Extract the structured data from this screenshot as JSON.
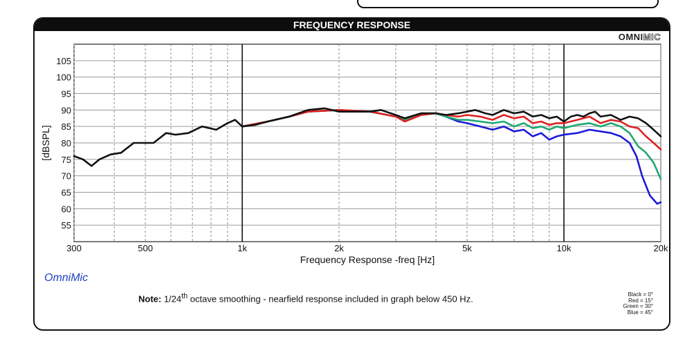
{
  "header": {
    "title": "FREQUENCY RESPONSE",
    "brand_a": "OMNI",
    "brand_b": "MIC"
  },
  "footer": {
    "omnimic": "OmniMic",
    "note_label": "Note:",
    "note_pre": " 1/24",
    "note_sup": "th",
    "note_post": " octave smoothing - nearfield response included in graph below 450 Hz.",
    "legend_lines": [
      "Black = 0°",
      "Red = 15°",
      "Green = 30°",
      "Blue = 45°"
    ]
  },
  "chart_data": {
    "type": "line",
    "title": "FREQUENCY RESPONSE",
    "xlabel": "Frequency Response -freq [Hz]",
    "ylabel": "[dBSPL]",
    "xscale": "log",
    "xlim": [
      300,
      20000
    ],
    "ylim": [
      50,
      110
    ],
    "grid": true,
    "yticks": [
      55,
      60,
      65,
      70,
      75,
      80,
      85,
      90,
      95,
      100,
      105
    ],
    "xtick_labels": [
      {
        "value": 300,
        "label": "300"
      },
      {
        "value": 500,
        "label": "500"
      },
      {
        "value": 1000,
        "label": "1k"
      },
      {
        "value": 2000,
        "label": "2k"
      },
      {
        "value": 5000,
        "label": "5k"
      },
      {
        "value": 10000,
        "label": "10k"
      },
      {
        "value": 20000,
        "label": "20k"
      }
    ],
    "series": [
      {
        "color": "#1a1ad8",
        "points": [
          [
            1000,
            85
          ],
          [
            1200,
            86.5
          ],
          [
            1400,
            88
          ],
          [
            1600,
            89.5
          ],
          [
            2000,
            90
          ],
          [
            2500,
            89.5
          ],
          [
            3000,
            88
          ],
          [
            3200,
            87
          ],
          [
            3600,
            88.5
          ],
          [
            4000,
            89
          ],
          [
            4300,
            88
          ],
          [
            4700,
            86.5
          ],
          [
            5000,
            86
          ],
          [
            5500,
            85
          ],
          [
            6000,
            84
          ],
          [
            6500,
            85
          ],
          [
            7000,
            83.5
          ],
          [
            7500,
            84
          ],
          [
            8000,
            82
          ],
          [
            8500,
            83
          ],
          [
            9000,
            81
          ],
          [
            9500,
            82
          ],
          [
            10000,
            82.5
          ],
          [
            11000,
            83
          ],
          [
            12000,
            84
          ],
          [
            13000,
            83.5
          ],
          [
            14000,
            83
          ],
          [
            15000,
            82
          ],
          [
            16000,
            80
          ],
          [
            16800,
            76
          ],
          [
            17500,
            70
          ],
          [
            18500,
            64
          ],
          [
            19500,
            61.5
          ],
          [
            20000,
            62
          ]
        ]
      },
      {
        "color": "#1fa872",
        "points": [
          [
            1000,
            85
          ],
          [
            1200,
            86.5
          ],
          [
            1400,
            88
          ],
          [
            1600,
            89.5
          ],
          [
            2000,
            90
          ],
          [
            2500,
            89.5
          ],
          [
            3000,
            88
          ],
          [
            3200,
            87
          ],
          [
            3600,
            88.5
          ],
          [
            4000,
            89
          ],
          [
            4300,
            88
          ],
          [
            4700,
            87
          ],
          [
            5000,
            87
          ],
          [
            5500,
            86.5
          ],
          [
            6000,
            86
          ],
          [
            6500,
            86.5
          ],
          [
            7000,
            85
          ],
          [
            7500,
            86
          ],
          [
            8000,
            84.5
          ],
          [
            8500,
            85
          ],
          [
            9000,
            84
          ],
          [
            9500,
            85
          ],
          [
            10000,
            84.5
          ],
          [
            11000,
            85.5
          ],
          [
            12000,
            86
          ],
          [
            13000,
            85
          ],
          [
            14000,
            86
          ],
          [
            15000,
            85
          ],
          [
            16000,
            83
          ],
          [
            17000,
            79
          ],
          [
            18000,
            77
          ],
          [
            19000,
            74
          ],
          [
            20000,
            69
          ]
        ]
      },
      {
        "color": "#e02020",
        "points": [
          [
            1000,
            85
          ],
          [
            1200,
            86.5
          ],
          [
            1400,
            88
          ],
          [
            1600,
            89.5
          ],
          [
            2000,
            90
          ],
          [
            2500,
            89.5
          ],
          [
            3000,
            88
          ],
          [
            3200,
            86.5
          ],
          [
            3600,
            88.5
          ],
          [
            4000,
            89
          ],
          [
            4300,
            88.5
          ],
          [
            4700,
            88
          ],
          [
            5000,
            88.5
          ],
          [
            5500,
            88
          ],
          [
            6000,
            87
          ],
          [
            6500,
            88.5
          ],
          [
            7000,
            87.5
          ],
          [
            7500,
            88
          ],
          [
            8000,
            86
          ],
          [
            8500,
            86.5
          ],
          [
            9000,
            85.5
          ],
          [
            9500,
            86
          ],
          [
            10000,
            86
          ],
          [
            11000,
            87
          ],
          [
            12000,
            88
          ],
          [
            13000,
            86
          ],
          [
            14000,
            87
          ],
          [
            15000,
            86.5
          ],
          [
            16000,
            85
          ],
          [
            17000,
            84.5
          ],
          [
            18000,
            82
          ],
          [
            19000,
            80
          ],
          [
            20000,
            78
          ]
        ]
      },
      {
        "color": "#111111",
        "points": [
          [
            300,
            76
          ],
          [
            320,
            75
          ],
          [
            340,
            73
          ],
          [
            360,
            75
          ],
          [
            390,
            76.5
          ],
          [
            420,
            77
          ],
          [
            460,
            80
          ],
          [
            500,
            80
          ],
          [
            530,
            80
          ],
          [
            580,
            83
          ],
          [
            620,
            82.5
          ],
          [
            680,
            83
          ],
          [
            750,
            85
          ],
          [
            830,
            84
          ],
          [
            900,
            86
          ],
          [
            950,
            87
          ],
          [
            1000,
            85
          ],
          [
            1100,
            85.5
          ],
          [
            1200,
            86.5
          ],
          [
            1400,
            88
          ],
          [
            1600,
            90
          ],
          [
            1800,
            90.5
          ],
          [
            2000,
            89.5
          ],
          [
            2500,
            89.5
          ],
          [
            2700,
            90
          ],
          [
            3000,
            88.5
          ],
          [
            3200,
            87.5
          ],
          [
            3600,
            89
          ],
          [
            4000,
            89
          ],
          [
            4300,
            88.5
          ],
          [
            4700,
            89
          ],
          [
            5000,
            89.5
          ],
          [
            5300,
            90
          ],
          [
            5700,
            89
          ],
          [
            6000,
            88.5
          ],
          [
            6500,
            90
          ],
          [
            7000,
            89
          ],
          [
            7500,
            89.5
          ],
          [
            8000,
            88
          ],
          [
            8500,
            88.5
          ],
          [
            9000,
            87.5
          ],
          [
            9500,
            88
          ],
          [
            10000,
            86.5
          ],
          [
            10500,
            88
          ],
          [
            11000,
            88.5
          ],
          [
            11500,
            88
          ],
          [
            12000,
            89
          ],
          [
            12500,
            89.5
          ],
          [
            13000,
            88
          ],
          [
            14000,
            88.5
          ],
          [
            15000,
            87
          ],
          [
            16000,
            88
          ],
          [
            17000,
            87.5
          ],
          [
            18000,
            86
          ],
          [
            19000,
            84
          ],
          [
            20000,
            82
          ]
        ]
      }
    ]
  }
}
